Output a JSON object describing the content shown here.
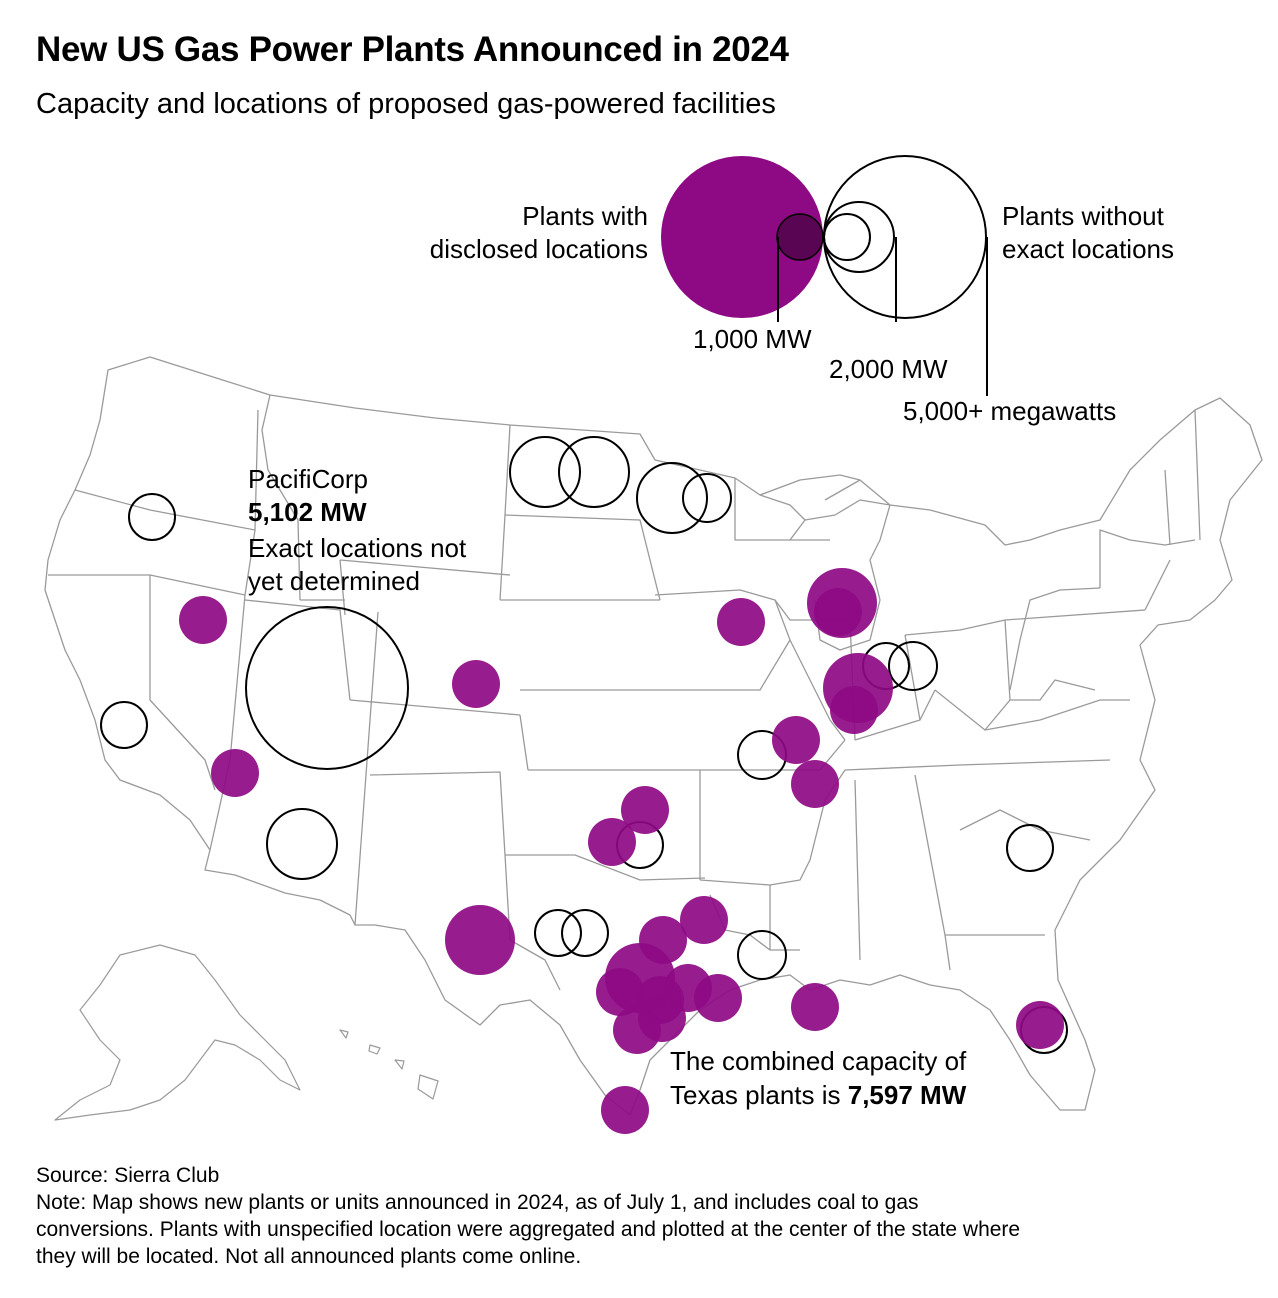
{
  "header": {
    "title": "New US Gas Power Plants Announced in 2024",
    "subtitle": "Capacity and locations of proposed gas-powered facilities"
  },
  "legend": {
    "disclosed_line1": "Plants with",
    "disclosed_line2": "disclosed locations",
    "undisclosed_line1": "Plants without",
    "undisclosed_line2": "exact locations",
    "size_1000": "1,000 MW",
    "size_2000": "2,000 MW",
    "size_5000": "5,000+ megawatts"
  },
  "annotations": {
    "pacificorp_name": "PacifiCorp",
    "pacificorp_mw": "5,102 MW",
    "pacificorp_note1": "Exact locations not",
    "pacificorp_note2": "yet determined",
    "texas_line1": "The combined capacity of",
    "texas_line2_prefix": "Texas plants is ",
    "texas_line2_value": "7,597 MW"
  },
  "footer": {
    "source": "Source: Sierra Club",
    "note1": "Note: Map shows new plants or units announced in 2024, as of July 1, and includes coal to gas",
    "note2": "conversions. Plants with unspecified location were aggregated and plotted at the center of the state where",
    "note3": "they will be located. Not all announced plants come online."
  },
  "colors": {
    "disclosed_fill": "#8e0a84",
    "undisclosed_stroke": "#000000",
    "state_border": "#9a9a9a"
  }
}
